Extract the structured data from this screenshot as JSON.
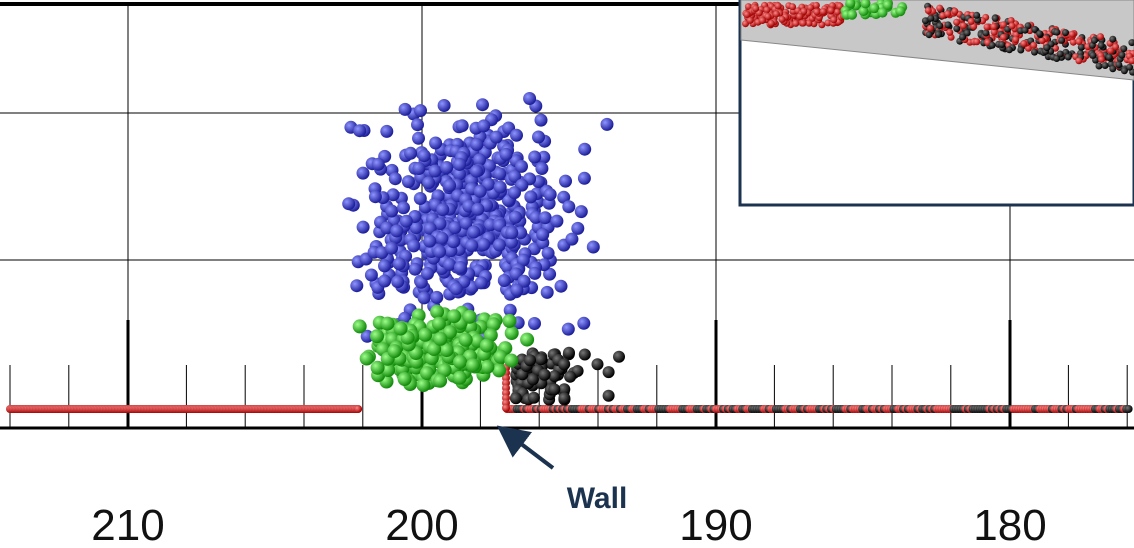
{
  "axis": {
    "tick_labels": [
      "210",
      "200",
      "190",
      "180"
    ]
  },
  "annotation": {
    "label": "Wall"
  }
}
